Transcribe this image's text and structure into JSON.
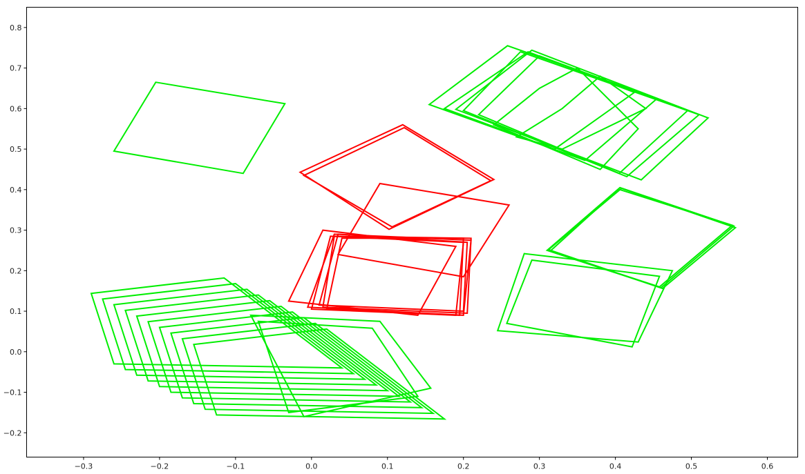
{
  "chart_data": {
    "type": "line",
    "title": "",
    "xlabel": "",
    "ylabel": "",
    "xlim": [
      -0.375,
      0.64
    ],
    "ylim": [
      -0.26,
      0.85
    ],
    "xticks": [
      -0.3,
      -0.2,
      -0.1,
      0.0,
      0.1,
      0.2,
      0.3,
      0.4,
      0.5,
      0.6
    ],
    "xtick_labels": [
      "−0.3",
      "−0.2",
      "−0.1",
      "0.0",
      "0.1",
      "0.2",
      "0.3",
      "0.4",
      "0.5",
      "0.6"
    ],
    "yticks": [
      -0.2,
      -0.1,
      0.0,
      0.1,
      0.2,
      0.3,
      0.4,
      0.5,
      0.6,
      0.7,
      0.8
    ],
    "ytick_labels": [
      "−0.2",
      "−0.1",
      "0.0",
      "0.1",
      "0.2",
      "0.3",
      "0.4",
      "0.5",
      "0.6",
      "0.7",
      "0.8"
    ],
    "grid": false,
    "legend": "none",
    "colors": {
      "green": "#00ee00",
      "red": "#ff0000"
    },
    "series": [
      {
        "color": "green",
        "polygons": [
          [
            [
              -0.26,
              0.495
            ],
            [
              -0.205,
              0.665
            ],
            [
              -0.035,
              0.612
            ],
            [
              -0.09,
              0.44
            ]
          ],
          [
            [
              -0.29,
              0.144
            ],
            [
              -0.115,
              0.182
            ],
            [
              0.04,
              -0.04
            ],
            [
              -0.26,
              -0.03
            ]
          ],
          [
            [
              -0.275,
              0.13
            ],
            [
              -0.1,
              0.168
            ],
            [
              0.055,
              -0.054
            ],
            [
              -0.245,
              -0.044
            ]
          ],
          [
            [
              -0.26,
              0.116
            ],
            [
              -0.085,
              0.154
            ],
            [
              0.07,
              -0.068
            ],
            [
              -0.23,
              -0.058
            ]
          ],
          [
            [
              -0.245,
              0.102
            ],
            [
              -0.07,
              0.14
            ],
            [
              0.085,
              -0.082
            ],
            [
              -0.215,
              -0.072
            ]
          ],
          [
            [
              -0.23,
              0.088
            ],
            [
              -0.055,
              0.126
            ],
            [
              0.1,
              -0.096
            ],
            [
              -0.2,
              -0.086
            ]
          ],
          [
            [
              -0.215,
              0.074
            ],
            [
              -0.04,
              0.112
            ],
            [
              0.115,
              -0.11
            ],
            [
              -0.185,
              -0.1
            ]
          ],
          [
            [
              -0.2,
              0.06
            ],
            [
              -0.025,
              0.098
            ],
            [
              0.13,
              -0.124
            ],
            [
              -0.17,
              -0.114
            ]
          ],
          [
            [
              -0.185,
              0.046
            ],
            [
              -0.01,
              0.084
            ],
            [
              0.145,
              -0.138
            ],
            [
              -0.155,
              -0.128
            ]
          ],
          [
            [
              -0.17,
              0.032
            ],
            [
              0.005,
              0.07
            ],
            [
              0.16,
              -0.152
            ],
            [
              -0.14,
              -0.142
            ]
          ],
          [
            [
              -0.155,
              0.018
            ],
            [
              0.02,
              0.056
            ],
            [
              0.175,
              -0.166
            ],
            [
              -0.125,
              -0.156
            ]
          ],
          [
            [
              -0.08,
              0.09
            ],
            [
              0.09,
              0.075
            ],
            [
              0.157,
              -0.09
            ],
            [
              -0.01,
              -0.16
            ]
          ],
          [
            [
              -0.07,
              0.075
            ],
            [
              0.08,
              0.058
            ],
            [
              0.14,
              -0.11
            ],
            [
              -0.03,
              -0.15
            ]
          ],
          [
            [
              0.245,
              0.052
            ],
            [
              0.28,
              0.242
            ],
            [
              0.475,
              0.2
            ],
            [
              0.43,
              0.024
            ]
          ],
          [
            [
              0.257,
              0.07
            ],
            [
              0.29,
              0.226
            ],
            [
              0.458,
              0.186
            ],
            [
              0.422,
              0.012
            ]
          ],
          [
            [
              0.31,
              0.25
            ],
            [
              0.406,
              0.405
            ],
            [
              0.556,
              0.31
            ],
            [
              0.46,
              0.158
            ]
          ],
          [
            [
              0.312,
              0.252
            ],
            [
              0.408,
              0.403
            ],
            [
              0.558,
              0.306
            ],
            [
              0.462,
              0.156
            ]
          ],
          [
            [
              0.314,
              0.248
            ],
            [
              0.404,
              0.401
            ],
            [
              0.554,
              0.312
            ],
            [
              0.458,
              0.16
            ]
          ],
          [
            [
              0.155,
              0.61
            ],
            [
              0.258,
              0.755
            ],
            [
              0.455,
              0.625
            ],
            [
              0.36,
              0.472
            ]
          ],
          [
            [
              0.175,
              0.6
            ],
            [
              0.285,
              0.74
            ],
            [
              0.425,
              0.64
            ],
            [
              0.32,
              0.5
            ]
          ],
          [
            [
              0.19,
              0.598
            ],
            [
              0.29,
              0.744
            ],
            [
              0.522,
              0.577
            ],
            [
              0.434,
              0.424
            ]
          ],
          [
            [
              0.2,
              0.595
            ],
            [
              0.275,
              0.74
            ],
            [
              0.51,
              0.585
            ],
            [
              0.415,
              0.432
            ]
          ],
          [
            [
              0.22,
              0.585
            ],
            [
              0.3,
              0.73
            ],
            [
              0.495,
              0.595
            ],
            [
              0.405,
              0.44
            ]
          ],
          [
            [
              0.24,
              0.56
            ],
            [
              0.3,
              0.65
            ],
            [
              0.35,
              0.7
            ],
            [
              0.43,
              0.55
            ],
            [
              0.38,
              0.45
            ]
          ],
          [
            [
              0.27,
              0.53
            ],
            [
              0.33,
              0.6
            ],
            [
              0.38,
              0.68
            ],
            [
              0.44,
              0.6
            ],
            [
              0.33,
              0.5
            ]
          ]
        ]
      },
      {
        "color": "red",
        "polygons": [
          [
            [
              -0.015,
              0.443
            ],
            [
              0.12,
              0.56
            ],
            [
              0.24,
              0.425
            ],
            [
              0.102,
              0.302
            ]
          ],
          [
            [
              -0.01,
              0.435
            ],
            [
              0.122,
              0.553
            ],
            [
              0.236,
              0.422
            ],
            [
              0.106,
              0.308
            ]
          ],
          [
            [
              0.035,
              0.24
            ],
            [
              0.09,
              0.415
            ],
            [
              0.26,
              0.362
            ],
            [
              0.2,
              0.185
            ]
          ],
          [
            [
              -0.03,
              0.125
            ],
            [
              0.015,
              0.3
            ],
            [
              0.19,
              0.26
            ],
            [
              0.14,
              0.09
            ]
          ],
          [
            [
              -0.005,
              0.11
            ],
            [
              0.03,
              0.29
            ],
            [
              0.21,
              0.275
            ],
            [
              0.2,
              0.09
            ]
          ],
          [
            [
              0.0,
              0.105
            ],
            [
              0.025,
              0.285
            ],
            [
              0.2,
              0.27
            ],
            [
              0.19,
              0.09
            ]
          ],
          [
            [
              0.01,
              0.115
            ],
            [
              0.035,
              0.29
            ],
            [
              0.205,
              0.27
            ],
            [
              0.2,
              0.1
            ]
          ],
          [
            [
              0.015,
              0.11
            ],
            [
              0.03,
              0.285
            ],
            [
              0.21,
              0.28
            ],
            [
              0.205,
              0.095
            ]
          ],
          [
            [
              0.02,
              0.105
            ],
            [
              0.04,
              0.28
            ],
            [
              0.2,
              0.28
            ],
            [
              0.195,
              0.09
            ]
          ]
        ]
      }
    ]
  }
}
